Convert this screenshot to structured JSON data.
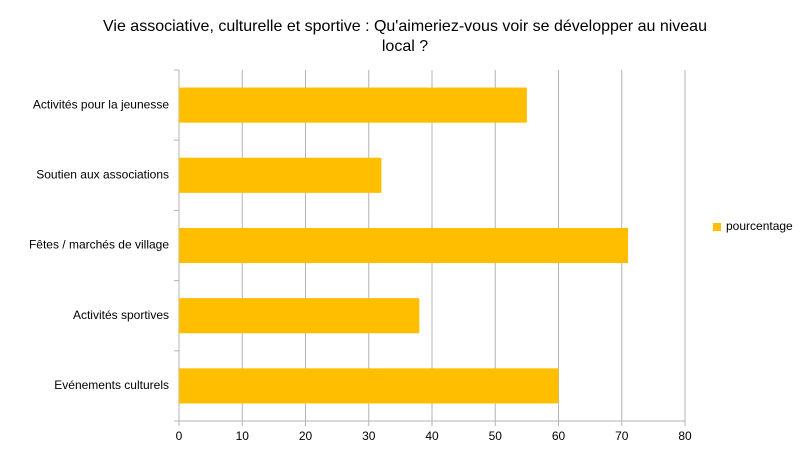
{
  "chart_data": {
    "type": "bar",
    "orientation": "horizontal",
    "title": "Vie associative, culturelle et sportive : Qu'aimeriez-vous voir se développer au niveau local ?",
    "categories": [
      "Activités pour la jeunesse",
      "Soutien aux associations",
      "Fêtes / marchés de village",
      "Activités sportives",
      "Evénements culturels"
    ],
    "series": [
      {
        "name": "pourcentage",
        "color": "#ffbf00",
        "values": [
          55,
          32,
          71,
          38,
          60
        ]
      }
    ],
    "xlim": [
      0,
      80
    ],
    "xticks": [
      0,
      10,
      20,
      30,
      40,
      50,
      60,
      70,
      80
    ],
    "grid": true,
    "legend": "right"
  }
}
